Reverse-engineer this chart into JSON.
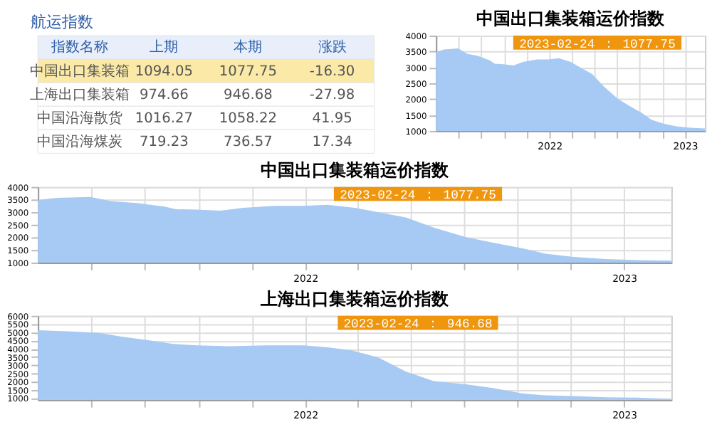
{
  "chart_data": [
    {
      "type": "other",
      "title": "航运指数",
      "categories": [
        "指数名称",
        "上期",
        "本期",
        "涨跌"
      ],
      "y_categories": [
        "中国出口集装箱",
        "上海出口集装箱",
        "中国沿海散货",
        "中国沿海煤炭"
      ],
      "cells": [
        [
          "1094.05",
          "1077.75",
          "-16.30"
        ],
        [
          "974.66",
          "946.68",
          "-27.98"
        ],
        [
          "1016.27",
          "1058.22",
          "41.95"
        ],
        [
          "719.23",
          "736.57",
          "17.34"
        ]
      ],
      "colors": [
        "#e8effa",
        "#fbe9a7",
        "#ffffff",
        "#ffffff",
        "#ffffff"
      ]
    },
    {
      "type": "area",
      "title": "中国出口集装箱运价指数",
      "color": "#a6caf4",
      "grid": true,
      "annotations": [
        "2023-02-24 ： 1077.75"
      ],
      "x": [
        "2021-03-01",
        "2021-03-23",
        "2021-04-30",
        "2021-05-24",
        "2021-06-22",
        "2021-07-24",
        "2021-08-06",
        "2021-08-30",
        "2021-09-26",
        "2021-10-22",
        "2021-11-28",
        "2021-12-30",
        "2022-01-26",
        "2022-02-27",
        "2022-03-31",
        "2022-04-26",
        "2022-05-28",
        "2022-07-04",
        "2022-08-05",
        "2022-09-06",
        "2022-10-03",
        "2022-11-04",
        "2022-12-11",
        "2023-01-17",
        "2023-02-24"
      ],
      "values": [
        3480,
        3565,
        3600,
        3430,
        3360,
        3220,
        3115,
        3100,
        3060,
        3170,
        3250,
        3250,
        3290,
        3170,
        2960,
        2790,
        2390,
        2010,
        1780,
        1570,
        1350,
        1225,
        1140,
        1100,
        1077.75
      ],
      "xlim": [
        "2021-03-01",
        "2023-02-24"
      ],
      "ylim": [
        1000,
        4000
      ],
      "yticks": [
        1000,
        1500,
        2000,
        2500,
        3000,
        3500,
        4000
      ],
      "xticks": [
        {
          "value": "2021-05",
          "label": null
        },
        {
          "value": "2021-07",
          "label": null
        },
        {
          "value": "2021-09",
          "label": null
        },
        {
          "value": "2021-11",
          "label": null
        },
        {
          "value": "2022-01",
          "label": "2022"
        },
        {
          "value": "2022-03",
          "label": null
        },
        {
          "value": "2022-05",
          "label": null
        },
        {
          "value": "2022-07",
          "label": null
        },
        {
          "value": "2022-09",
          "label": null
        },
        {
          "value": "2022-11",
          "label": null
        },
        {
          "value": "2023-01",
          "label": "2023"
        }
      ]
    },
    {
      "type": "area",
      "title": "中国出口集装箱运价指数",
      "color": "#a6caf4",
      "grid": true,
      "annotations": [
        "2023-02-24 ： 1077.75"
      ],
      "x": [
        "2021-03-01",
        "2021-03-23",
        "2021-04-30",
        "2021-05-24",
        "2021-06-22",
        "2021-07-24",
        "2021-08-06",
        "2021-08-30",
        "2021-09-26",
        "2021-10-22",
        "2021-11-28",
        "2021-12-30",
        "2022-01-26",
        "2022-02-27",
        "2022-03-31",
        "2022-04-26",
        "2022-05-28",
        "2022-07-04",
        "2022-08-05",
        "2022-09-06",
        "2022-10-03",
        "2022-11-04",
        "2022-12-11",
        "2023-01-17",
        "2023-02-24"
      ],
      "values": [
        3480,
        3565,
        3600,
        3430,
        3360,
        3220,
        3115,
        3100,
        3060,
        3170,
        3250,
        3250,
        3290,
        3170,
        2960,
        2790,
        2390,
        2010,
        1780,
        1570,
        1350,
        1225,
        1140,
        1100,
        1077.75
      ],
      "xlim": [
        "2021-03-01",
        "2023-02-24"
      ],
      "ylim": [
        1000,
        4000
      ],
      "yticks": [
        1000,
        1500,
        2000,
        2500,
        3000,
        3500,
        4000
      ],
      "xticks": [
        {
          "value": "2021-05",
          "label": null
        },
        {
          "value": "2021-07",
          "label": null
        },
        {
          "value": "2021-09",
          "label": null
        },
        {
          "value": "2021-11",
          "label": null
        },
        {
          "value": "2022-01",
          "label": "2022"
        },
        {
          "value": "2022-03",
          "label": null
        },
        {
          "value": "2022-05",
          "label": null
        },
        {
          "value": "2022-07",
          "label": null
        },
        {
          "value": "2022-09",
          "label": null
        },
        {
          "value": "2022-11",
          "label": null
        },
        {
          "value": "2023-01",
          "label": "2023"
        }
      ]
    },
    {
      "type": "area",
      "title": "上海出口集装箱运价指数",
      "color": "#a6caf4",
      "grid": true,
      "annotations": [
        "2023-02-24 ： 946.68"
      ],
      "x": [
        "2021-03-01",
        "2021-04-08",
        "2021-05-10",
        "2021-06-06",
        "2021-07-08",
        "2021-08-03",
        "2021-08-30",
        "2021-10-06",
        "2021-11-18",
        "2021-12-30",
        "2022-01-26",
        "2022-02-22",
        "2022-03-26",
        "2022-04-26",
        "2022-05-28",
        "2022-07-04",
        "2022-08-05",
        "2022-09-06",
        "2022-10-03",
        "2022-11-09",
        "2022-12-11",
        "2023-01-17",
        "2023-02-24"
      ],
      "values": [
        5130,
        5050,
        4960,
        4730,
        4500,
        4290,
        4210,
        4150,
        4210,
        4210,
        4090,
        3920,
        3460,
        2620,
        2040,
        1840,
        1610,
        1290,
        1170,
        1115,
        1060,
        1030,
        946.68
      ],
      "xlim": [
        "2021-03-01",
        "2023-02-24"
      ],
      "ylim": [
        900,
        6000
      ],
      "yticks": [
        1000,
        1500,
        2000,
        2500,
        3000,
        3500,
        4000,
        4500,
        5000,
        5500,
        6000
      ],
      "xticks": [
        {
          "value": "2021-05",
          "label": null
        },
        {
          "value": "2021-07",
          "label": null
        },
        {
          "value": "2021-09",
          "label": null
        },
        {
          "value": "2021-11",
          "label": null
        },
        {
          "value": "2022-01",
          "label": "2022"
        },
        {
          "value": "2022-03",
          "label": null
        },
        {
          "value": "2022-05",
          "label": null
        },
        {
          "value": "2022-07",
          "label": null
        },
        {
          "value": "2022-09",
          "label": null
        },
        {
          "value": "2022-11",
          "label": null
        },
        {
          "value": "2023-01",
          "label": "2023"
        }
      ]
    }
  ]
}
